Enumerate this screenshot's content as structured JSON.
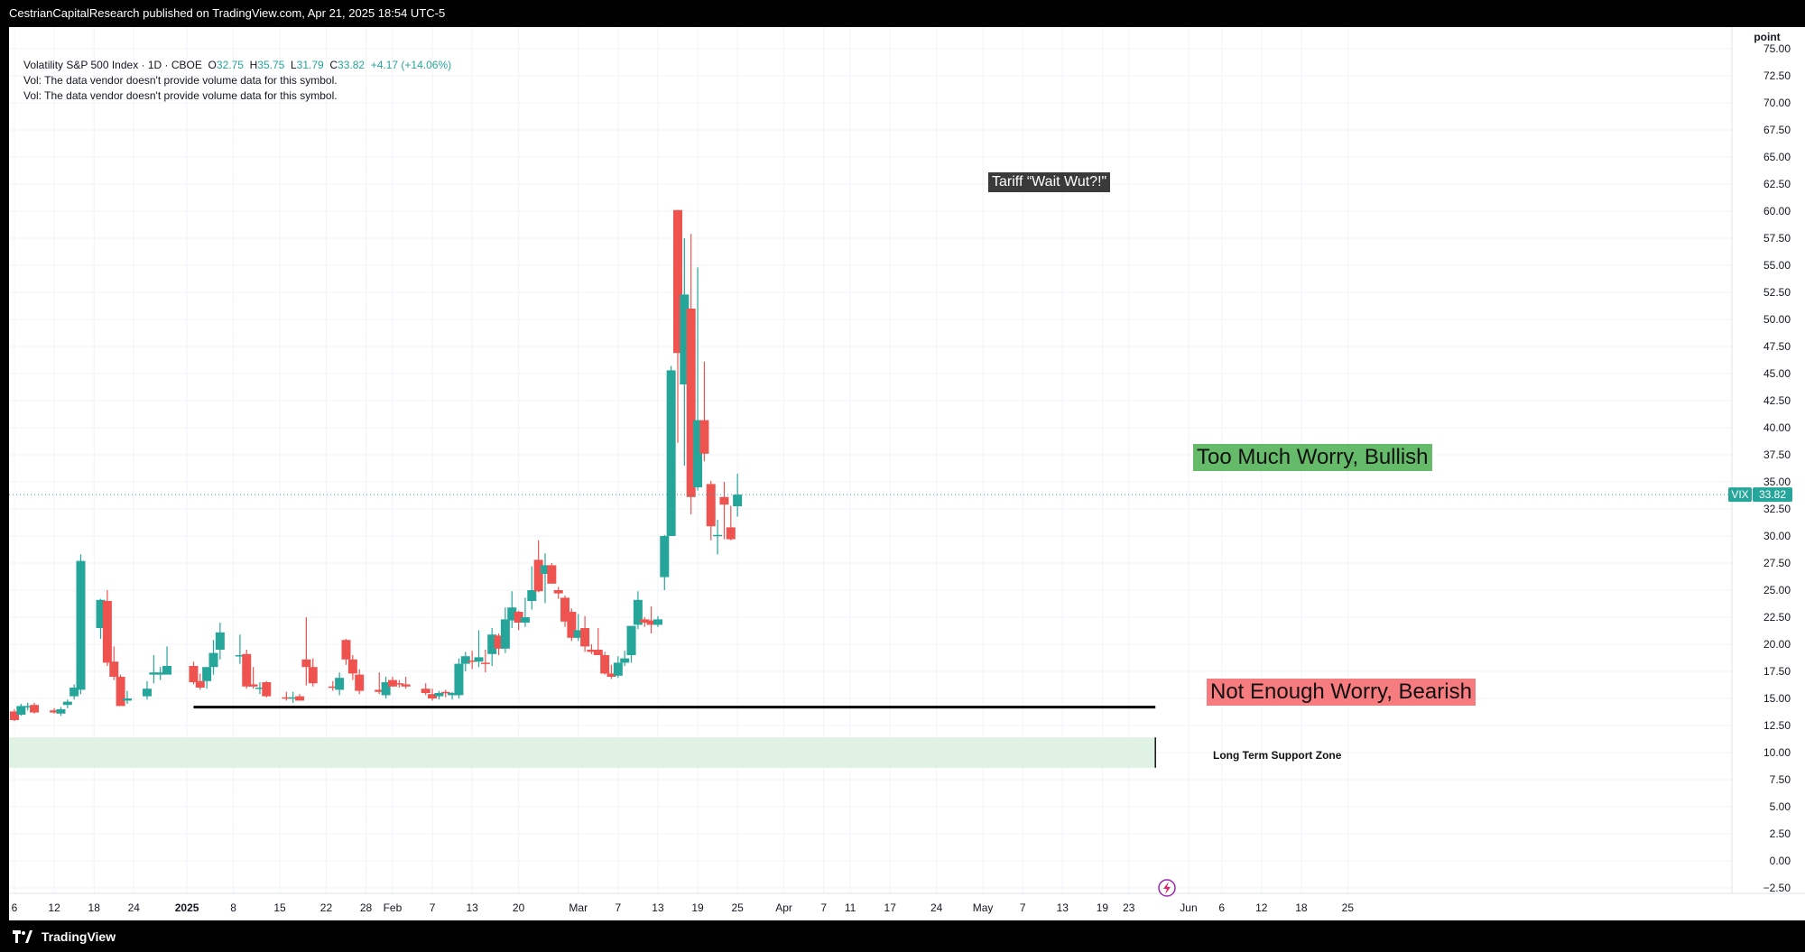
{
  "header": {
    "publisher": "CestrianCapitalResearch published on TradingView.com, Apr 21, 2025 18:54 UTC-5"
  },
  "legend": {
    "symbol": "Volatility S&P 500 Index · 1D · CBOE",
    "o_label": "O",
    "o": "32.75",
    "h_label": "H",
    "h": "35.75",
    "l_label": "L",
    "l": "31.79",
    "c_label": "C",
    "c": "33.82",
    "change": "+4.17 (+14.06%)",
    "vol1": "Vol: The data vendor doesn't provide volume data for this symbol.",
    "vol2": "Vol: The data vendor doesn't provide volume data for this symbol."
  },
  "annotations": {
    "tariff": "Tariff “Wait Wut?!\"",
    "bullish": "Too Much Worry, Bullish",
    "bearish": "Not Enough Worry, Bearish",
    "support": "Long Term Support Zone"
  },
  "price_label": {
    "symbol": "VIX",
    "value": "33.82"
  },
  "colors": {
    "up": "#26a69a",
    "down": "#ef5350",
    "bullish_box": "#66bb6a",
    "bearish_box": "#f77c80",
    "support_zone": "#e0f2e3"
  },
  "footer": {
    "brand": "TradingView"
  },
  "chart_data": {
    "type": "candlestick",
    "title": "",
    "y_unit": "point",
    "ylim": [
      -3,
      77
    ],
    "y_ticks": [
      75,
      72.5,
      70,
      67.5,
      65,
      62.5,
      60,
      57.5,
      55,
      52.5,
      50,
      47.5,
      45,
      42.5,
      40,
      37.5,
      35,
      32.5,
      30,
      27.5,
      25,
      22.5,
      20,
      17.5,
      15,
      12.5,
      10,
      7.5,
      5,
      2.5,
      0,
      -2.5
    ],
    "y_tick_labels": [
      "75.00",
      "72.50",
      "70.00",
      "67.50",
      "65.00",
      "62.50",
      "60.00",
      "57.50",
      "55.00",
      "52.50",
      "50.00",
      "47.50",
      "45.00",
      "42.50",
      "40.00",
      "37.50",
      "35.00",
      "32.50",
      "30.00",
      "27.50",
      "25.00",
      "22.50",
      "20.00",
      "17.50",
      "15.00",
      "12.50",
      "10.00",
      "7.50",
      "5.00",
      "2.50",
      "0.00",
      "−2.50"
    ],
    "x_ticks": [
      {
        "label": "6",
        "day": 0
      },
      {
        "label": "12",
        "day": 6
      },
      {
        "label": "18",
        "day": 12
      },
      {
        "label": "24",
        "day": 18
      },
      {
        "label": "2025",
        "day": 26
      },
      {
        "label": "8",
        "day": 33
      },
      {
        "label": "15",
        "day": 40
      },
      {
        "label": "22",
        "day": 47
      },
      {
        "label": "28",
        "day": 53
      },
      {
        "label": "Feb",
        "day": 57
      },
      {
        "label": "7",
        "day": 63
      },
      {
        "label": "13",
        "day": 69
      },
      {
        "label": "20",
        "day": 76
      },
      {
        "label": "Mar",
        "day": 85
      },
      {
        "label": "7",
        "day": 91
      },
      {
        "label": "13",
        "day": 97
      },
      {
        "label": "19",
        "day": 103
      },
      {
        "label": "25",
        "day": 109
      },
      {
        "label": "Apr",
        "day": 116
      },
      {
        "label": "7",
        "day": 122
      },
      {
        "label": "11",
        "day": 126
      },
      {
        "label": "17",
        "day": 132
      },
      {
        "label": "24",
        "day": 139
      },
      {
        "label": "May",
        "day": 146
      },
      {
        "label": "7",
        "day": 152
      },
      {
        "label": "13",
        "day": 158
      },
      {
        "label": "19",
        "day": 164
      },
      {
        "label": "23",
        "day": 168
      },
      {
        "label": "Jun",
        "day": 177
      },
      {
        "label": "6",
        "day": 182
      },
      {
        "label": "12",
        "day": 188
      },
      {
        "label": "18",
        "day": 194
      },
      {
        "label": "25",
        "day": 201
      }
    ],
    "candles": [
      {
        "d": 0,
        "o": 13.8,
        "h": 14.0,
        "l": 12.9,
        "c": 13.0
      },
      {
        "d": 1,
        "o": 13.5,
        "h": 14.5,
        "l": 13.4,
        "c": 14.3
      },
      {
        "d": 2,
        "o": 14.2,
        "h": 14.6,
        "l": 13.9,
        "c": 14.3
      },
      {
        "d": 3,
        "o": 14.4,
        "h": 14.6,
        "l": 13.6,
        "c": 13.7
      },
      {
        "d": 6,
        "o": 13.9,
        "h": 14.1,
        "l": 13.6,
        "c": 13.7
      },
      {
        "d": 7,
        "o": 13.6,
        "h": 14.2,
        "l": 13.4,
        "c": 14.0
      },
      {
        "d": 8,
        "o": 14.4,
        "h": 14.9,
        "l": 14.1,
        "c": 14.7
      },
      {
        "d": 9,
        "o": 15.2,
        "h": 16.3,
        "l": 14.9,
        "c": 16.0
      },
      {
        "d": 10,
        "o": 15.8,
        "h": 28.3,
        "l": 15.4,
        "c": 27.7
      },
      {
        "d": 13,
        "o": 21.5,
        "h": 24.2,
        "l": 20.5,
        "c": 24.1
      },
      {
        "d": 14,
        "o": 24.0,
        "h": 25.0,
        "l": 18.0,
        "c": 18.3
      },
      {
        "d": 15,
        "o": 18.4,
        "h": 19.8,
        "l": 16.7,
        "c": 17.0
      },
      {
        "d": 16,
        "o": 17.0,
        "h": 17.2,
        "l": 14.6,
        "c": 14.3
      },
      {
        "d": 17,
        "o": 14.8,
        "h": 15.7,
        "l": 14.5,
        "c": 15.0
      },
      {
        "d": 20,
        "o": 15.2,
        "h": 16.6,
        "l": 14.9,
        "c": 15.9
      },
      {
        "d": 21,
        "o": 17.2,
        "h": 19.0,
        "l": 16.4,
        "c": 17.4
      },
      {
        "d": 22,
        "o": 17.2,
        "h": 17.9,
        "l": 16.7,
        "c": 17.4
      },
      {
        "d": 23,
        "o": 17.2,
        "h": 19.8,
        "l": 17.2,
        "c": 18.0
      },
      {
        "d": 27,
        "o": 18.0,
        "h": 18.4,
        "l": 16.3,
        "c": 16.5
      },
      {
        "d": 28,
        "o": 16.6,
        "h": 17.3,
        "l": 15.8,
        "c": 16.0
      },
      {
        "d": 29,
        "o": 16.6,
        "h": 17.4,
        "l": 15.9,
        "c": 17.9
      },
      {
        "d": 30,
        "o": 17.9,
        "h": 20.4,
        "l": 17.2,
        "c": 19.2
      },
      {
        "d": 31,
        "o": 19.5,
        "h": 22.0,
        "l": 18.6,
        "c": 21.1
      },
      {
        "d": 34,
        "o": 19.0,
        "h": 20.9,
        "l": 18.2,
        "c": 19.0
      },
      {
        "d": 35,
        "o": 19.1,
        "h": 19.5,
        "l": 15.9,
        "c": 16.1
      },
      {
        "d": 36,
        "o": 16.3,
        "h": 17.9,
        "l": 15.9,
        "c": 16.1
      },
      {
        "d": 37,
        "o": 15.9,
        "h": 16.5,
        "l": 15.4,
        "c": 16.0
      },
      {
        "d": 38,
        "o": 16.5,
        "h": 16.6,
        "l": 15.1,
        "c": 15.2
      },
      {
        "d": 41,
        "o": 15.1,
        "h": 15.6,
        "l": 14.8,
        "c": 15.0
      },
      {
        "d": 42,
        "o": 15.1,
        "h": 15.6,
        "l": 14.6,
        "c": 15.1
      },
      {
        "d": 43,
        "o": 15.2,
        "h": 15.4,
        "l": 14.8,
        "c": 14.8
      },
      {
        "d": 44,
        "o": 18.6,
        "h": 22.5,
        "l": 16.2,
        "c": 17.9
      },
      {
        "d": 45,
        "o": 17.9,
        "h": 18.7,
        "l": 16.1,
        "c": 16.4
      },
      {
        "d": 48,
        "o": 16.1,
        "h": 16.6,
        "l": 15.7,
        "c": 16.0
      },
      {
        "d": 49,
        "o": 15.8,
        "h": 17.4,
        "l": 15.3,
        "c": 16.9
      },
      {
        "d": 50,
        "o": 20.4,
        "h": 20.5,
        "l": 18.1,
        "c": 18.6
      },
      {
        "d": 51,
        "o": 18.6,
        "h": 19.0,
        "l": 16.7,
        "c": 17.3
      },
      {
        "d": 52,
        "o": 17.2,
        "h": 17.7,
        "l": 15.4,
        "c": 15.7
      },
      {
        "d": 55,
        "o": 15.8,
        "h": 17.4,
        "l": 15.4,
        "c": 15.6
      },
      {
        "d": 56,
        "o": 15.3,
        "h": 17.0,
        "l": 15.0,
        "c": 16.5
      },
      {
        "d": 57,
        "o": 16.7,
        "h": 17.0,
        "l": 16.1,
        "c": 16.1
      },
      {
        "d": 58,
        "o": 16.4,
        "h": 16.7,
        "l": 16.0,
        "c": 16.3
      },
      {
        "d": 59,
        "o": 16.3,
        "h": 17.0,
        "l": 15.9,
        "c": 16.1
      },
      {
        "d": 62,
        "o": 15.9,
        "h": 16.4,
        "l": 15.3,
        "c": 15.5
      },
      {
        "d": 63,
        "o": 15.4,
        "h": 15.9,
        "l": 14.8,
        "c": 15.0
      },
      {
        "d": 64,
        "o": 15.2,
        "h": 15.7,
        "l": 14.9,
        "c": 15.5
      },
      {
        "d": 65,
        "o": 15.6,
        "h": 15.8,
        "l": 15.1,
        "c": 15.5
      },
      {
        "d": 66,
        "o": 15.3,
        "h": 15.6,
        "l": 14.9,
        "c": 15.5
      },
      {
        "d": 67,
        "o": 15.3,
        "h": 18.7,
        "l": 15.0,
        "c": 18.2
      },
      {
        "d": 68,
        "o": 18.2,
        "h": 19.3,
        "l": 17.5,
        "c": 18.9
      },
      {
        "d": 69,
        "o": 18.5,
        "h": 19.4,
        "l": 17.7,
        "c": 18.4
      },
      {
        "d": 70,
        "o": 18.4,
        "h": 21.3,
        "l": 17.9,
        "c": 18.8
      },
      {
        "d": 71,
        "o": 18.3,
        "h": 19.5,
        "l": 17.4,
        "c": 18.2
      },
      {
        "d": 72,
        "o": 19.1,
        "h": 21.5,
        "l": 18.0,
        "c": 20.9
      },
      {
        "d": 73,
        "o": 20.8,
        "h": 21.0,
        "l": 19.0,
        "c": 19.6
      },
      {
        "d": 74,
        "o": 19.6,
        "h": 23.4,
        "l": 19.2,
        "c": 22.3
      },
      {
        "d": 75,
        "o": 22.2,
        "h": 24.9,
        "l": 21.5,
        "c": 23.4
      },
      {
        "d": 76,
        "o": 23.0,
        "h": 23.1,
        "l": 21.3,
        "c": 22.0
      },
      {
        "d": 77,
        "o": 22.0,
        "h": 24.3,
        "l": 21.6,
        "c": 22.5
      },
      {
        "d": 78,
        "o": 24.0,
        "h": 27.2,
        "l": 23.2,
        "c": 25.0
      },
      {
        "d": 79,
        "o": 27.8,
        "h": 29.6,
        "l": 24.8,
        "c": 24.9
      },
      {
        "d": 80,
        "o": 26.5,
        "h": 28.4,
        "l": 23.8,
        "c": 27.3
      },
      {
        "d": 81,
        "o": 27.3,
        "h": 27.5,
        "l": 25.6,
        "c": 25.6
      },
      {
        "d": 82,
        "o": 25.0,
        "h": 25.3,
        "l": 24.2,
        "c": 24.7
      },
      {
        "d": 83,
        "o": 24.3,
        "h": 24.5,
        "l": 21.6,
        "c": 22.1
      },
      {
        "d": 84,
        "o": 23.0,
        "h": 23.3,
        "l": 20.3,
        "c": 20.6
      },
      {
        "d": 85,
        "o": 20.6,
        "h": 22.8,
        "l": 20.3,
        "c": 21.3
      },
      {
        "d": 86,
        "o": 21.5,
        "h": 22.6,
        "l": 19.3,
        "c": 19.8
      },
      {
        "d": 87,
        "o": 19.5,
        "h": 20.0,
        "l": 19.1,
        "c": 19.3
      },
      {
        "d": 88,
        "o": 19.5,
        "h": 21.5,
        "l": 19.1,
        "c": 19.0
      },
      {
        "d": 89,
        "o": 19.0,
        "h": 19.3,
        "l": 17.2,
        "c": 17.3
      },
      {
        "d": 90,
        "o": 17.3,
        "h": 18.1,
        "l": 16.8,
        "c": 17.0
      },
      {
        "d": 91,
        "o": 17.1,
        "h": 18.9,
        "l": 16.9,
        "c": 18.3
      },
      {
        "d": 92,
        "o": 18.3,
        "h": 19.4,
        "l": 18.0,
        "c": 18.7
      },
      {
        "d": 93,
        "o": 19.0,
        "h": 21.5,
        "l": 18.3,
        "c": 21.7
      },
      {
        "d": 94,
        "o": 21.8,
        "h": 24.9,
        "l": 21.4,
        "c": 24.1
      },
      {
        "d": 95,
        "o": 22.3,
        "h": 22.5,
        "l": 21.6,
        "c": 22.0
      },
      {
        "d": 96,
        "o": 22.2,
        "h": 23.5,
        "l": 21.0,
        "c": 21.8
      },
      {
        "d": 97,
        "o": 21.8,
        "h": 22.6,
        "l": 21.6,
        "c": 22.3
      },
      {
        "d": 98,
        "o": 26.2,
        "h": 30.1,
        "l": 25.0,
        "c": 30.0
      },
      {
        "d": 99,
        "o": 30.0,
        "h": 45.7,
        "l": 30.0,
        "c": 45.3
      },
      {
        "d": 100,
        "o": 60.1,
        "h": 60.1,
        "l": 38.6,
        "c": 46.9
      },
      {
        "d": 101,
        "o": 44.0,
        "h": 57.5,
        "l": 36.5,
        "c": 52.3
      },
      {
        "d": 102,
        "o": 51.0,
        "h": 57.9,
        "l": 32.0,
        "c": 33.6
      },
      {
        "d": 103,
        "o": 34.5,
        "h": 54.8,
        "l": 34.2,
        "c": 40.7
      },
      {
        "d": 104,
        "o": 40.7,
        "h": 46.1,
        "l": 36.9,
        "c": 37.6
      },
      {
        "d": 105,
        "o": 34.8,
        "h": 35.1,
        "l": 29.6,
        "c": 30.9
      },
      {
        "d": 106,
        "o": 30.0,
        "h": 31.5,
        "l": 28.3,
        "c": 30.1
      },
      {
        "d": 107,
        "o": 33.6,
        "h": 35.0,
        "l": 29.7,
        "c": 32.9
      },
      {
        "d": 108,
        "o": 30.8,
        "h": 32.8,
        "l": 29.6,
        "c": 29.7
      },
      {
        "d": 109,
        "o": 32.75,
        "h": 35.75,
        "l": 31.79,
        "c": 33.82
      }
    ],
    "lines": [
      {
        "name": "horizontal-support-line",
        "from_day": 27,
        "to_day": 172,
        "value": 14.2
      }
    ],
    "zones": [
      {
        "name": "long-term-support-zone",
        "from_day": 0,
        "to_day": 172,
        "low": 8.6,
        "high": 11.4
      }
    ],
    "last_price": 33.82,
    "grid": true,
    "legend_position": "top-left"
  }
}
